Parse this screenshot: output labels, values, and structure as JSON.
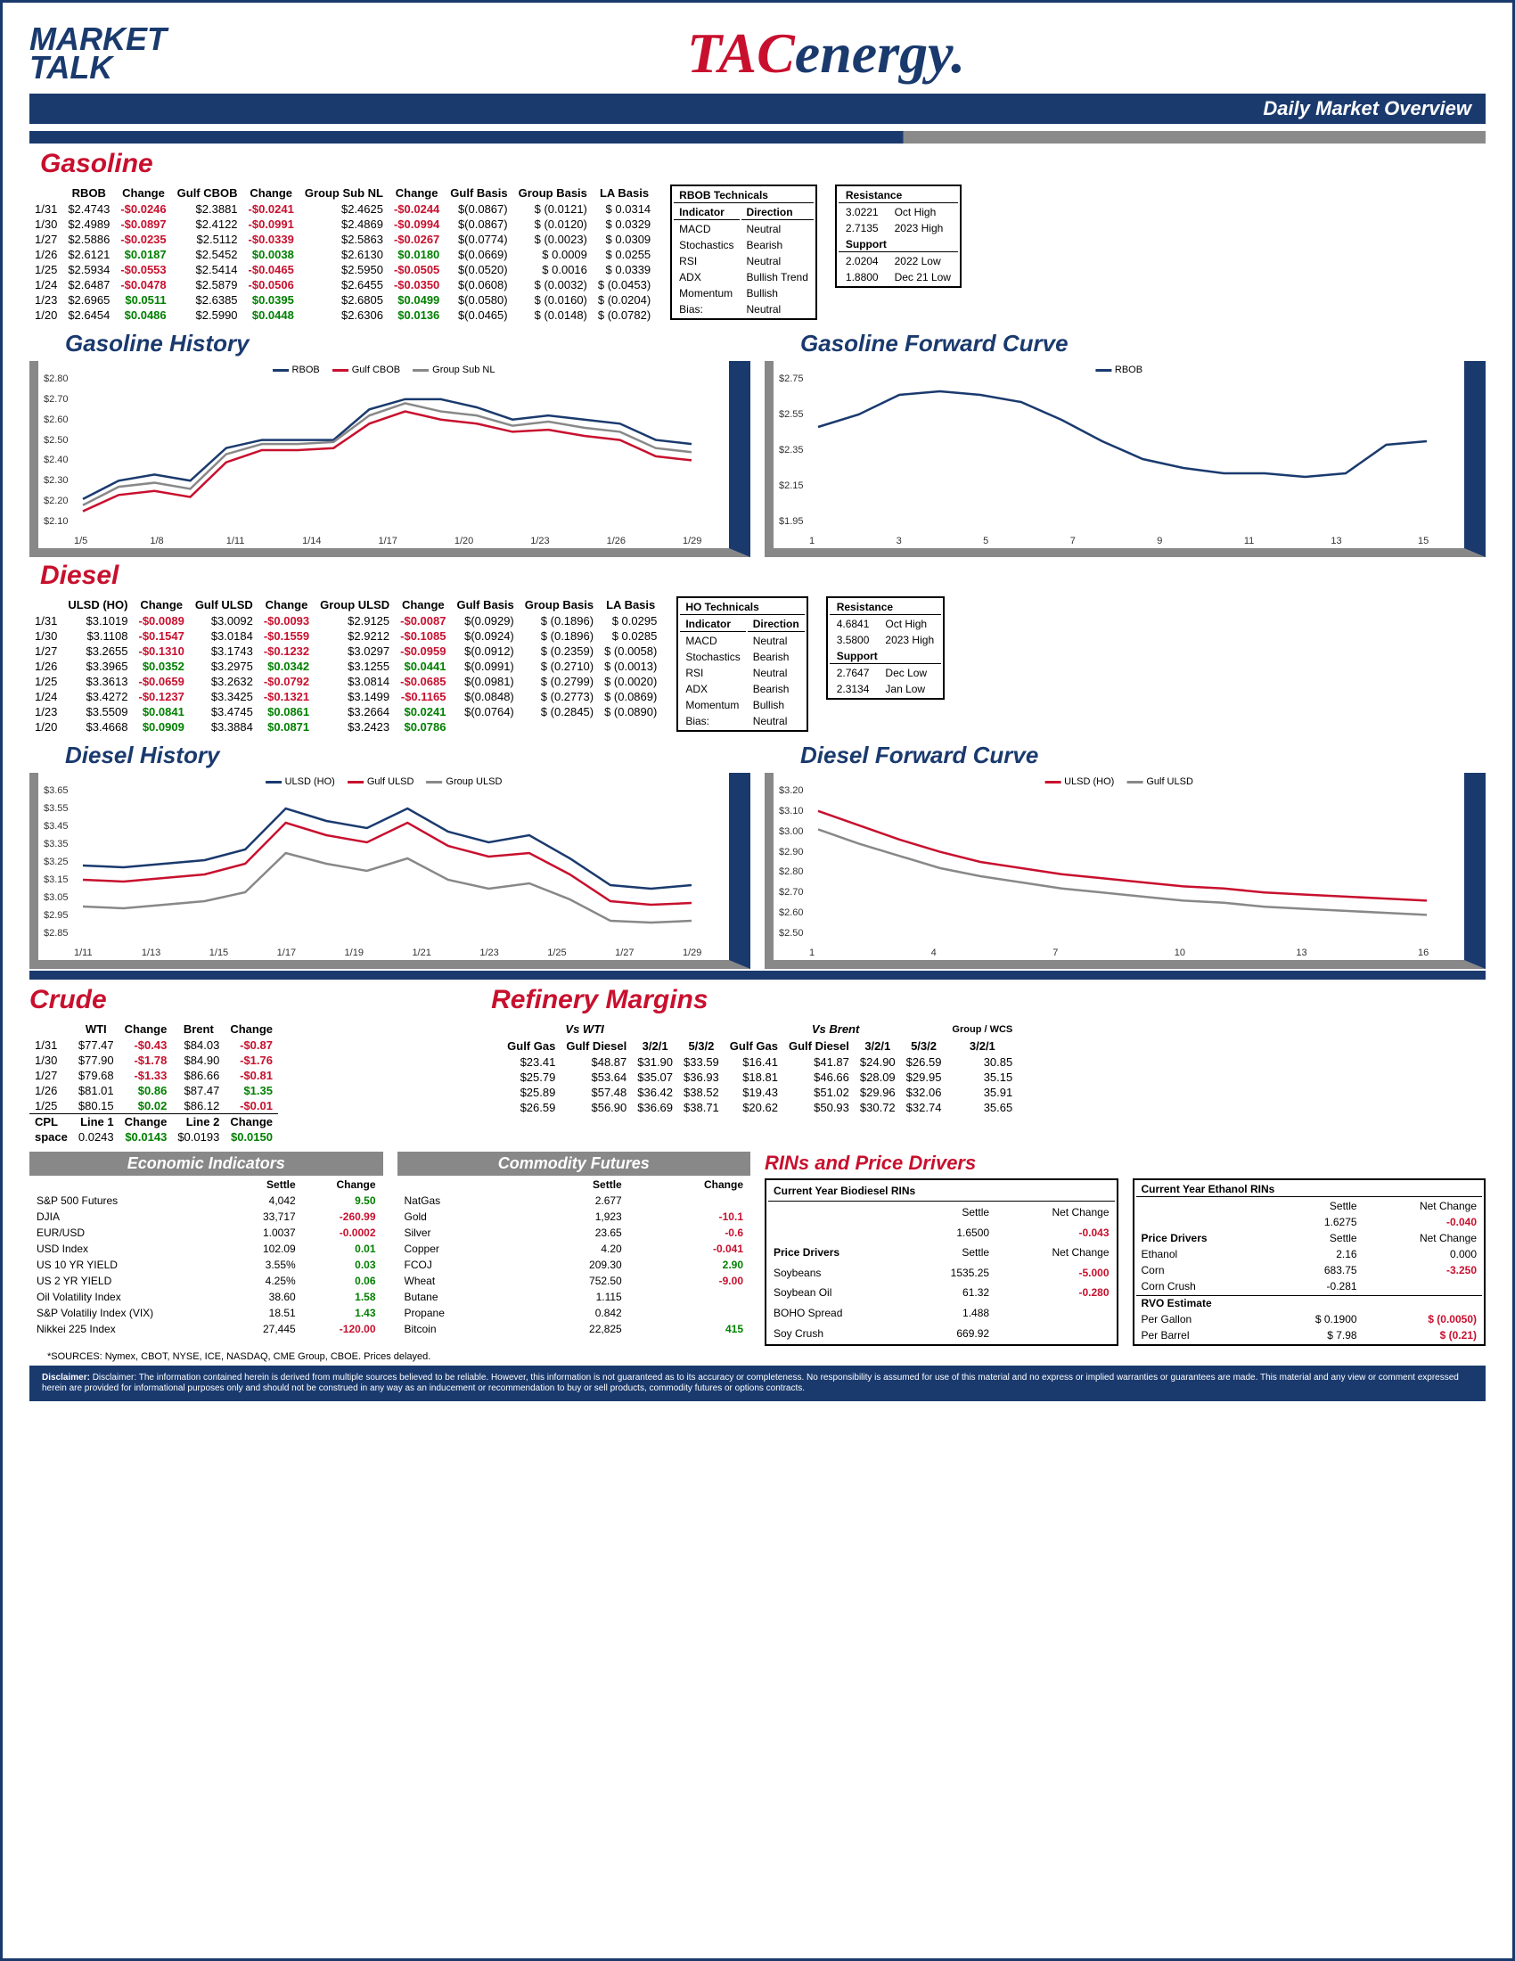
{
  "header": {
    "logo_left_line1": "MARKET",
    "logo_left_line2": "TALK",
    "logo_tac": "TAC",
    "logo_energy": "energy.",
    "subtitle": "Daily Market Overview"
  },
  "gasoline": {
    "title": "Gasoline",
    "headers": [
      "",
      "RBOB",
      "Change",
      "Gulf CBOB",
      "Change",
      "Group Sub NL",
      "Change",
      "Gulf Basis",
      "Group Basis",
      "LA Basis"
    ],
    "rows": [
      [
        "1/31",
        "$2.4743",
        "-$0.0246",
        "$2.3881",
        "-$0.0241",
        "$2.4625",
        "-$0.0244",
        "$(0.0867)",
        "$ (0.0121)",
        "$ 0.0314"
      ],
      [
        "1/30",
        "$2.4989",
        "-$0.0897",
        "$2.4122",
        "-$0.0991",
        "$2.4869",
        "-$0.0994",
        "$(0.0867)",
        "$ (0.0120)",
        "$ 0.0329"
      ],
      [
        "1/27",
        "$2.5886",
        "-$0.0235",
        "$2.5112",
        "-$0.0339",
        "$2.5863",
        "-$0.0267",
        "$(0.0774)",
        "$ (0.0023)",
        "$ 0.0309"
      ],
      [
        "1/26",
        "$2.6121",
        "$0.0187",
        "$2.5452",
        "$0.0038",
        "$2.6130",
        "$0.0180",
        "$(0.0669)",
        "$ 0.0009",
        "$ 0.0255"
      ],
      [
        "1/25",
        "$2.5934",
        "-$0.0553",
        "$2.5414",
        "-$0.0465",
        "$2.5950",
        "-$0.0505",
        "$(0.0520)",
        "$ 0.0016",
        "$ 0.0339"
      ],
      [
        "1/24",
        "$2.6487",
        "-$0.0478",
        "$2.5879",
        "-$0.0506",
        "$2.6455",
        "-$0.0350",
        "$(0.0608)",
        "$ (0.0032)",
        "$ (0.0453)"
      ],
      [
        "1/23",
        "$2.6965",
        "$0.0511",
        "$2.6385",
        "$0.0395",
        "$2.6805",
        "$0.0499",
        "$(0.0580)",
        "$ (0.0160)",
        "$ (0.0204)"
      ],
      [
        "1/20",
        "$2.6454",
        "$0.0486",
        "$2.5990",
        "$0.0448",
        "$2.6306",
        "$0.0136",
        "$(0.0465)",
        "$ (0.0148)",
        "$ (0.0782)"
      ]
    ],
    "tech_header": "RBOB Technicals",
    "tech_cols": [
      "Indicator",
      "Direction"
    ],
    "tech_rows": [
      [
        "MACD",
        "Neutral"
      ],
      [
        "Stochastics",
        "Bearish"
      ],
      [
        "RSI",
        "Neutral"
      ],
      [
        "ADX",
        "Bullish Trend"
      ],
      [
        "Momentum",
        "Bullish"
      ],
      [
        "Bias:",
        "Neutral"
      ]
    ],
    "res_header": "Resistance",
    "res_rows": [
      [
        "3.0221",
        "Oct High"
      ],
      [
        "2.7135",
        "2023 High"
      ],
      [
        "2.0204",
        "2022 Low"
      ],
      [
        "1.8800",
        "Dec 21 Low"
      ]
    ],
    "sup_header": "Support"
  },
  "gas_history": {
    "title": "Gasoline History",
    "ylim": [
      2.1,
      2.8
    ],
    "yticks": [
      "$2.80",
      "$2.70",
      "$2.60",
      "$2.50",
      "$2.40",
      "$2.30",
      "$2.20",
      "$2.10"
    ],
    "xticks": [
      "1/5",
      "1/8",
      "1/11",
      "1/14",
      "1/17",
      "1/20",
      "1/23",
      "1/26",
      "1/29"
    ],
    "series": [
      {
        "name": "RBOB",
        "color": "#1a3a6e",
        "values": [
          2.21,
          2.3,
          2.33,
          2.3,
          2.46,
          2.5,
          2.5,
          2.5,
          2.65,
          2.7,
          2.7,
          2.66,
          2.6,
          2.62,
          2.6,
          2.58,
          2.5,
          2.48
        ]
      },
      {
        "name": "Gulf CBOB",
        "color": "#c8102e",
        "values": [
          2.15,
          2.23,
          2.25,
          2.22,
          2.39,
          2.45,
          2.45,
          2.46,
          2.58,
          2.64,
          2.6,
          2.58,
          2.54,
          2.55,
          2.52,
          2.5,
          2.42,
          2.4
        ]
      },
      {
        "name": "Group Sub NL",
        "color": "#888888",
        "values": [
          2.18,
          2.27,
          2.29,
          2.26,
          2.43,
          2.48,
          2.48,
          2.49,
          2.62,
          2.68,
          2.64,
          2.62,
          2.57,
          2.59,
          2.56,
          2.54,
          2.46,
          2.44
        ]
      }
    ]
  },
  "gas_forward": {
    "title": "Gasoline Forward Curve",
    "ylim": [
      1.95,
      2.75
    ],
    "yticks": [
      "$2.75",
      "$2.55",
      "$2.35",
      "$2.15",
      "$1.95"
    ],
    "xticks": [
      "1",
      "3",
      "5",
      "7",
      "9",
      "11",
      "13",
      "15"
    ],
    "series": [
      {
        "name": "RBOB",
        "color": "#1a3a6e",
        "values": [
          2.48,
          2.55,
          2.66,
          2.68,
          2.66,
          2.62,
          2.52,
          2.4,
          2.3,
          2.25,
          2.22,
          2.22,
          2.2,
          2.22,
          2.38,
          2.4
        ]
      }
    ]
  },
  "diesel": {
    "title": "Diesel",
    "headers": [
      "",
      "ULSD (HO)",
      "Change",
      "Gulf ULSD",
      "Change",
      "Group ULSD",
      "Change",
      "Gulf Basis",
      "Group Basis",
      "LA Basis"
    ],
    "rows": [
      [
        "1/31",
        "$3.1019",
        "-$0.0089",
        "$3.0092",
        "-$0.0093",
        "$2.9125",
        "-$0.0087",
        "$(0.0929)",
        "$ (0.1896)",
        "$ 0.0295"
      ],
      [
        "1/30",
        "$3.1108",
        "-$0.1547",
        "$3.0184",
        "-$0.1559",
        "$2.9212",
        "-$0.1085",
        "$(0.0924)",
        "$ (0.1896)",
        "$ 0.0285"
      ],
      [
        "1/27",
        "$3.2655",
        "-$0.1310",
        "$3.1743",
        "-$0.1232",
        "$3.0297",
        "-$0.0959",
        "$(0.0912)",
        "$ (0.2359)",
        "$ (0.0058)"
      ],
      [
        "1/26",
        "$3.3965",
        "$0.0352",
        "$3.2975",
        "$0.0342",
        "$3.1255",
        "$0.0441",
        "$(0.0991)",
        "$ (0.2710)",
        "$ (0.0013)"
      ],
      [
        "1/25",
        "$3.3613",
        "-$0.0659",
        "$3.2632",
        "-$0.0792",
        "$3.0814",
        "-$0.0685",
        "$(0.0981)",
        "$ (0.2799)",
        "$ (0.0020)"
      ],
      [
        "1/24",
        "$3.4272",
        "-$0.1237",
        "$3.3425",
        "-$0.1321",
        "$3.1499",
        "-$0.1165",
        "$(0.0848)",
        "$ (0.2773)",
        "$ (0.0869)"
      ],
      [
        "1/23",
        "$3.5509",
        "$0.0841",
        "$3.4745",
        "$0.0861",
        "$3.2664",
        "$0.0241",
        "$(0.0764)",
        "$ (0.2845)",
        "$ (0.0890)"
      ],
      [
        "1/20",
        "$3.4668",
        "$0.0909",
        "$3.3884",
        "$0.0871",
        "$3.2423",
        "$0.0786",
        "",
        "",
        ""
      ]
    ],
    "tech_header": "HO Technicals",
    "tech_cols": [
      "Indicator",
      "Direction"
    ],
    "tech_rows": [
      [
        "MACD",
        "Neutral"
      ],
      [
        "Stochastics",
        "Bearish"
      ],
      [
        "RSI",
        "Neutral"
      ],
      [
        "ADX",
        "Bearish"
      ],
      [
        "Momentum",
        "Bullish"
      ],
      [
        "Bias:",
        "Neutral"
      ]
    ],
    "res_header": "Resistance",
    "res_rows": [
      [
        "4.6841",
        "Oct High"
      ],
      [
        "3.5800",
        "2023 High"
      ],
      [
        "2.7647",
        "Dec Low"
      ],
      [
        "2.3134",
        "Jan Low"
      ]
    ],
    "sup_header": "Support"
  },
  "diesel_history": {
    "title": "Diesel History",
    "ylim": [
      2.85,
      3.65
    ],
    "yticks": [
      "$3.65",
      "$3.55",
      "$3.45",
      "$3.35",
      "$3.25",
      "$3.15",
      "$3.05",
      "$2.95",
      "$2.85"
    ],
    "xticks": [
      "1/11",
      "1/13",
      "1/15",
      "1/17",
      "1/19",
      "1/21",
      "1/23",
      "1/25",
      "1/27",
      "1/29"
    ],
    "series": [
      {
        "name": "ULSD (HO)",
        "color": "#1a3a6e",
        "values": [
          3.23,
          3.22,
          3.24,
          3.26,
          3.32,
          3.55,
          3.48,
          3.44,
          3.55,
          3.42,
          3.36,
          3.4,
          3.27,
          3.12,
          3.1,
          3.12
        ]
      },
      {
        "name": "Gulf ULSD",
        "color": "#c8102e",
        "values": [
          3.15,
          3.14,
          3.16,
          3.18,
          3.24,
          3.47,
          3.4,
          3.36,
          3.47,
          3.34,
          3.28,
          3.3,
          3.18,
          3.03,
          3.01,
          3.02
        ]
      },
      {
        "name": "Group ULSD",
        "color": "#888888",
        "values": [
          3.0,
          2.99,
          3.01,
          3.03,
          3.08,
          3.3,
          3.24,
          3.2,
          3.27,
          3.15,
          3.1,
          3.13,
          3.04,
          2.92,
          2.91,
          2.92
        ]
      }
    ]
  },
  "diesel_forward": {
    "title": "Diesel Forward Curve",
    "ylim": [
      2.5,
      3.2
    ],
    "yticks": [
      "$3.20",
      "$3.10",
      "$3.00",
      "$2.90",
      "$2.80",
      "$2.70",
      "$2.60",
      "$2.50"
    ],
    "xticks": [
      "1",
      "4",
      "7",
      "10",
      "13",
      "16"
    ],
    "series": [
      {
        "name": "ULSD (HO)",
        "color": "#c8102e",
        "values": [
          3.1,
          3.03,
          2.96,
          2.9,
          2.85,
          2.82,
          2.79,
          2.77,
          2.75,
          2.73,
          2.72,
          2.7,
          2.69,
          2.68,
          2.67,
          2.66
        ]
      },
      {
        "name": "Gulf ULSD",
        "color": "#888888",
        "values": [
          3.01,
          2.94,
          2.88,
          2.82,
          2.78,
          2.75,
          2.72,
          2.7,
          2.68,
          2.66,
          2.65,
          2.63,
          2.62,
          2.61,
          2.6,
          2.59
        ]
      }
    ]
  },
  "crude": {
    "title": "Crude",
    "headers": [
      "",
      "WTI",
      "Change",
      "Brent",
      "Change"
    ],
    "rows": [
      [
        "1/31",
        "$77.47",
        "-$0.43",
        "$84.03",
        "-$0.87"
      ],
      [
        "1/30",
        "$77.90",
        "-$1.78",
        "$84.90",
        "-$1.76"
      ],
      [
        "1/27",
        "$79.68",
        "-$1.33",
        "$86.66",
        "-$0.81"
      ],
      [
        "1/26",
        "$81.01",
        "$0.86",
        "$87.47",
        "$1.35"
      ],
      [
        "1/25",
        "$80.15",
        "$0.02",
        "$86.12",
        "-$0.01"
      ]
    ],
    "cpl_label": "CPL\nspace",
    "cpl_row": [
      "Line 1",
      "Change",
      "Line 2",
      "Change"
    ],
    "cpl_vals": [
      "0.0243",
      "$0.0143",
      "$0.0193",
      "$0.0150"
    ]
  },
  "refinery": {
    "title": "Refinery Margins",
    "vs_wti": "Vs WTI",
    "vs_brent": "Vs Brent",
    "group_wcs": "Group / WCS",
    "headers": [
      "Gulf Gas",
      "Gulf Diesel",
      "3/2/1",
      "5/3/2",
      "Gulf Gas",
      "Gulf Diesel",
      "3/2/1",
      "5/3/2",
      "3/2/1"
    ],
    "rows": [
      [
        "$23.41",
        "$48.87",
        "$31.90",
        "$33.59",
        "$16.41",
        "$41.87",
        "$24.90",
        "$26.59",
        "30.85"
      ],
      [
        "$25.79",
        "$53.64",
        "$35.07",
        "$36.93",
        "$18.81",
        "$46.66",
        "$28.09",
        "$29.95",
        "35.15"
      ],
      [
        "$25.89",
        "$57.48",
        "$36.42",
        "$38.52",
        "$19.43",
        "$51.02",
        "$29.96",
        "$32.06",
        "35.91"
      ],
      [
        "$26.59",
        "$56.90",
        "$36.69",
        "$38.71",
        "$20.62",
        "$50.93",
        "$30.72",
        "$32.74",
        "35.65"
      ]
    ]
  },
  "econ": {
    "title": "Economic Indicators",
    "headers": [
      "",
      "Settle",
      "Change"
    ],
    "rows": [
      [
        "S&P 500 Futures",
        "4,042",
        "9.50"
      ],
      [
        "DJIA",
        "33,717",
        "-260.99"
      ],
      [
        "EUR/USD",
        "1.0037",
        "-0.0002"
      ],
      [
        "USD Index",
        "102.09",
        "0.01"
      ],
      [
        "US 10 YR YIELD",
        "3.55%",
        "0.03"
      ],
      [
        "US 2 YR YIELD",
        "4.25%",
        "0.06"
      ],
      [
        "Oil Volatility Index",
        "38.60",
        "1.58"
      ],
      [
        "S&P Volatiliy Index (VIX)",
        "18.51",
        "1.43"
      ],
      [
        "Nikkei 225 Index",
        "27,445",
        "-120.00"
      ]
    ]
  },
  "commodity": {
    "title": "Commodity Futures",
    "headers": [
      "",
      "Settle",
      "Change"
    ],
    "rows": [
      [
        "NatGas",
        "2.677",
        ""
      ],
      [
        "Gold",
        "1,923",
        "-10.1"
      ],
      [
        "Silver",
        "23.65",
        "-0.6"
      ],
      [
        "Copper",
        "4.20",
        "-0.041"
      ],
      [
        "FCOJ",
        "209.30",
        "2.90"
      ],
      [
        "Wheat",
        "752.50",
        "-9.00"
      ],
      [
        "Butane",
        "1.115",
        ""
      ],
      [
        "Propane",
        "0.842",
        ""
      ],
      [
        "Bitcoin",
        "22,825",
        "415"
      ]
    ]
  },
  "rins": {
    "title": "RINs and Price Drivers",
    "bio_header": "Current Year Biodiesel RINs",
    "eth_header": "Current Year Ethanol RINs",
    "cols": [
      "Settle",
      "Net Change"
    ],
    "bio_val": [
      "1.6500",
      "-0.043"
    ],
    "eth_val": [
      "1.6275",
      "-0.040"
    ],
    "pd_header": "Price Drivers",
    "pd_left": [
      [
        "Soybeans",
        "1535.25",
        "-5.000"
      ],
      [
        "Soybean Oil",
        "61.32",
        "-0.280"
      ],
      [
        "BOHO Spread",
        "1.488",
        ""
      ],
      [
        "Soy Crush",
        "669.92",
        ""
      ]
    ],
    "pd_right": [
      [
        "Ethanol",
        "2.16",
        "0.000"
      ],
      [
        "Corn",
        "683.75",
        "-3.250"
      ],
      [
        "Corn Crush",
        "-0.281",
        ""
      ]
    ],
    "rvo_header": "RVO Estimate",
    "rvo_rows": [
      [
        "Per Gallon",
        "$ 0.1900",
        "$ (0.0050)"
      ],
      [
        "Per Barrel",
        "$ 7.98",
        "$ (0.21)"
      ]
    ]
  },
  "footnote": "*SOURCES: Nymex, CBOT, NYSE, ICE, NASDAQ, CME Group, CBOE.   Prices delayed.",
  "disclaimer": "Disclaimer: The information contained herein is derived from multiple sources believed to be reliable.  However, this information is not guaranteed as to its accuracy or completeness. No responsibility is assumed for use of this material and no express or implied warranties or guarantees are made. This material and any view or comment expressed herein are provided for informational purposes only and should not be construed in any way as an inducement or recommendation to buy or sell products, commodity futures or options contracts."
}
